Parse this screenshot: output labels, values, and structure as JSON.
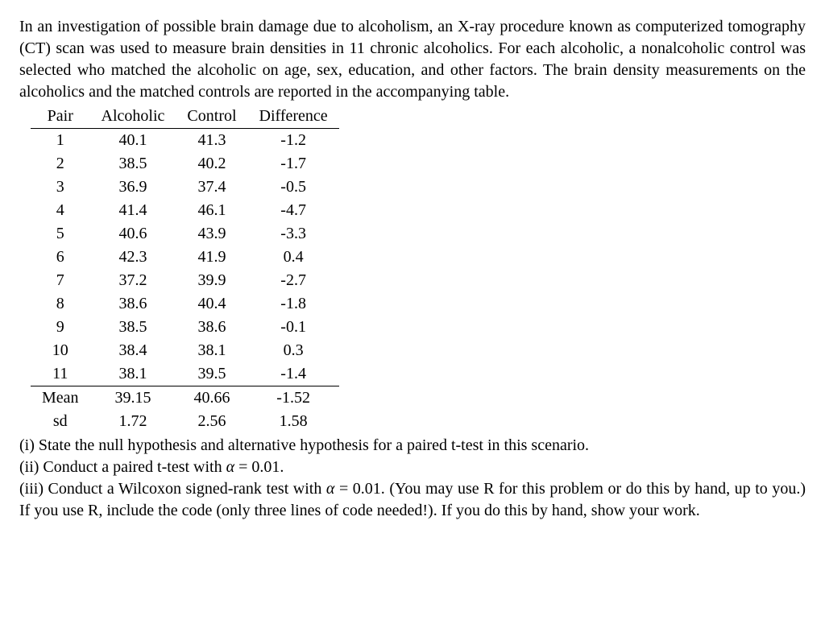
{
  "intro": "In an investigation of possible brain damage due to alcoholism, an X-ray procedure known as computerized tomography (CT) scan was used to measure brain densities in 11 chronic alcoholics. For each alcoholic, a nonalcoholic control was selected who matched the alcoholic on age, sex, education, and other factors. The brain density measurements on the alcoholics and the matched controls are reported in the accompanying table.",
  "table": {
    "columns": [
      "Pair",
      "Alcoholic",
      "Control",
      "Difference"
    ],
    "rows": [
      [
        "1",
        "40.1",
        "41.3",
        "-1.2"
      ],
      [
        "2",
        "38.5",
        "40.2",
        "-1.7"
      ],
      [
        "3",
        "36.9",
        "37.4",
        "-0.5"
      ],
      [
        "4",
        "41.4",
        "46.1",
        "-4.7"
      ],
      [
        "5",
        "40.6",
        "43.9",
        "-3.3"
      ],
      [
        "6",
        "42.3",
        "41.9",
        "0.4"
      ],
      [
        "7",
        "37.2",
        "39.9",
        "-2.7"
      ],
      [
        "8",
        "38.6",
        "40.4",
        "-1.8"
      ],
      [
        "9",
        "38.5",
        "38.6",
        "-0.1"
      ],
      [
        "10",
        "38.4",
        "38.1",
        "0.3"
      ],
      [
        "11",
        "38.1",
        "39.5",
        "-1.4"
      ]
    ],
    "summary": [
      [
        "Mean",
        "39.15",
        "40.66",
        "-1.52"
      ],
      [
        "sd",
        "1.72",
        "2.56",
        "1.58"
      ]
    ]
  },
  "questions": {
    "q1": "(i) State the null hypothesis and alternative hypothesis for a paired t-test in this scenario.",
    "q2_a": "(ii) Conduct a paired t-test with ",
    "q2_alpha": "α",
    "q2_b": " = 0.01.",
    "q3_a": "(iii) Conduct a Wilcoxon signed-rank test with ",
    "q3_alpha": "α",
    "q3_b": " = 0.01. (You may use R for this problem or do this by hand, up to you.) If you use R, include the code (only three lines of code needed!). If you do this by hand, show your work."
  }
}
